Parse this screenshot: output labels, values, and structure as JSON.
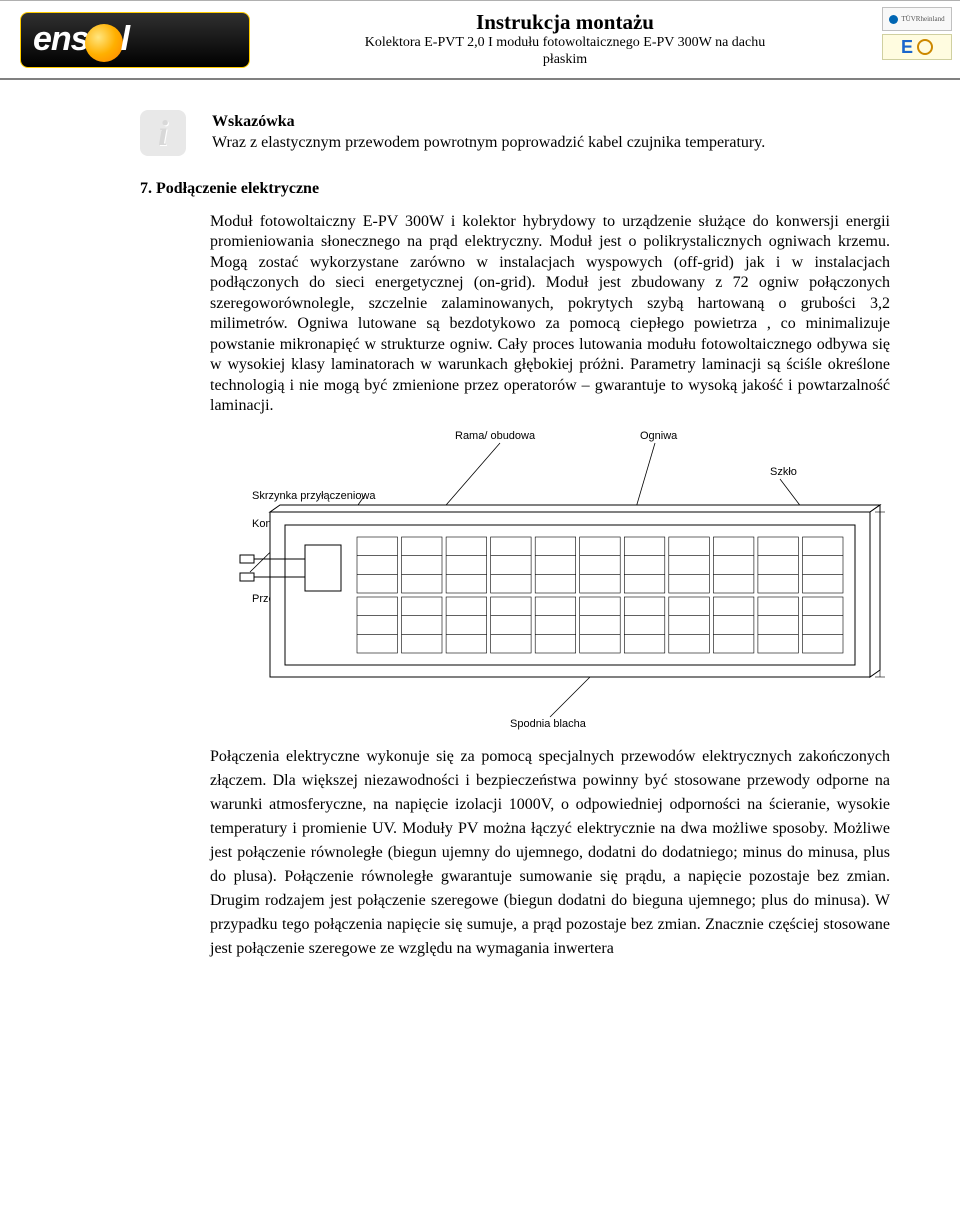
{
  "header": {
    "logo_text_left": "ens",
    "logo_text_right": "l",
    "title": "Instrukcja montażu",
    "subtitle_line1": "Kolektora E-PVT 2,0 I modułu fotowoltaicznego E-PV 300W  na dachu",
    "subtitle_line2": "płaskim",
    "cert1_label": "TÜVRheinland",
    "cert2_label": "E"
  },
  "info": {
    "icon_glyph": "i",
    "heading": "Wskazówka",
    "text": "Wraz z elastycznym przewodem powrotnym poprowadzić kabel czujnika temperatury."
  },
  "section": {
    "number": "7.",
    "title": "Podłączenie elektryczne"
  },
  "para1": "Moduł fotowoltaiczny E-PV 300W i kolektor hybrydowy to urządzenie służące do konwersji energii promieniowania słonecznego na prąd elektryczny. Moduł jest o polikrystalicznych ogniwach krzemu. Mogą zostać wykorzystane zarówno w instalacjach wyspowych (off-grid) jak i w instalacjach podłączonych do sieci energetycznej (on-grid). Moduł jest zbudowany z 72 ogniw połączonych szeregoworównolegle, szczelnie zalaminowanych, pokrytych szybą hartowaną o grubości 3,2 milimetrów. Ogniwa lutowane są bezdotykowo za pomocą ciepłego powietrza , co minimalizuje powstanie mikronapięć w strukturze ogniw. Cały proces lutowania modułu fotowoltaicznego odbywa się w wysokiej klasy laminatorach w warunkach głębokiej próżni. Parametry laminacji są ściśle określone technologią i nie mogą być zmienione przez operatorów – gwarantuje to wysoką jakość i powtarzalność laminacji.",
  "diagram": {
    "labels": {
      "rama": "Rama/ obudowa",
      "ogniwa": "Ogniwa",
      "szklo": "Szkło",
      "skrzynka": "Skrzynka przyłączeniowa",
      "konektor": "Konektor",
      "przewody": "Przewody elektryczne",
      "spodnia": "Spodnia blacha"
    },
    "colors": {
      "stroke": "#000000",
      "label": "#000000",
      "fill": "#ffffff"
    },
    "label_fontsize": 11,
    "label_fontfamily": "Arial, sans-serif",
    "cells_cols": 11,
    "cells_rows": 2
  },
  "para2": "Połączenia elektryczne wykonuje się za pomocą specjalnych przewodów elektrycznych zakończonych złączem. Dla większej niezawodności i bezpieczeństwa powinny być stosowane przewody odporne na warunki atmosferyczne, na napięcie izolacji 1000V, o odpowiedniej odporności na ścieranie, wysokie temperatury i promienie UV. Moduły PV można łączyć elektrycznie na dwa możliwe sposoby. Możliwe jest połączenie równoległe (biegun ujemny do ujemnego, dodatni do dodatniego; minus do minusa, plus do plusa). Połączenie równoległe gwarantuje sumowanie się prądu, a napięcie pozostaje bez zmian. Drugim rodzajem jest połączenie szeregowe (biegun dodatni do bieguna ujemnego; plus do minusa). W przypadku tego połączenia napięcie się sumuje, a prąd pozostaje bez zmian. Znacznie częściej stosowane jest połączenie szeregowe ze względu na wymagania inwertera"
}
